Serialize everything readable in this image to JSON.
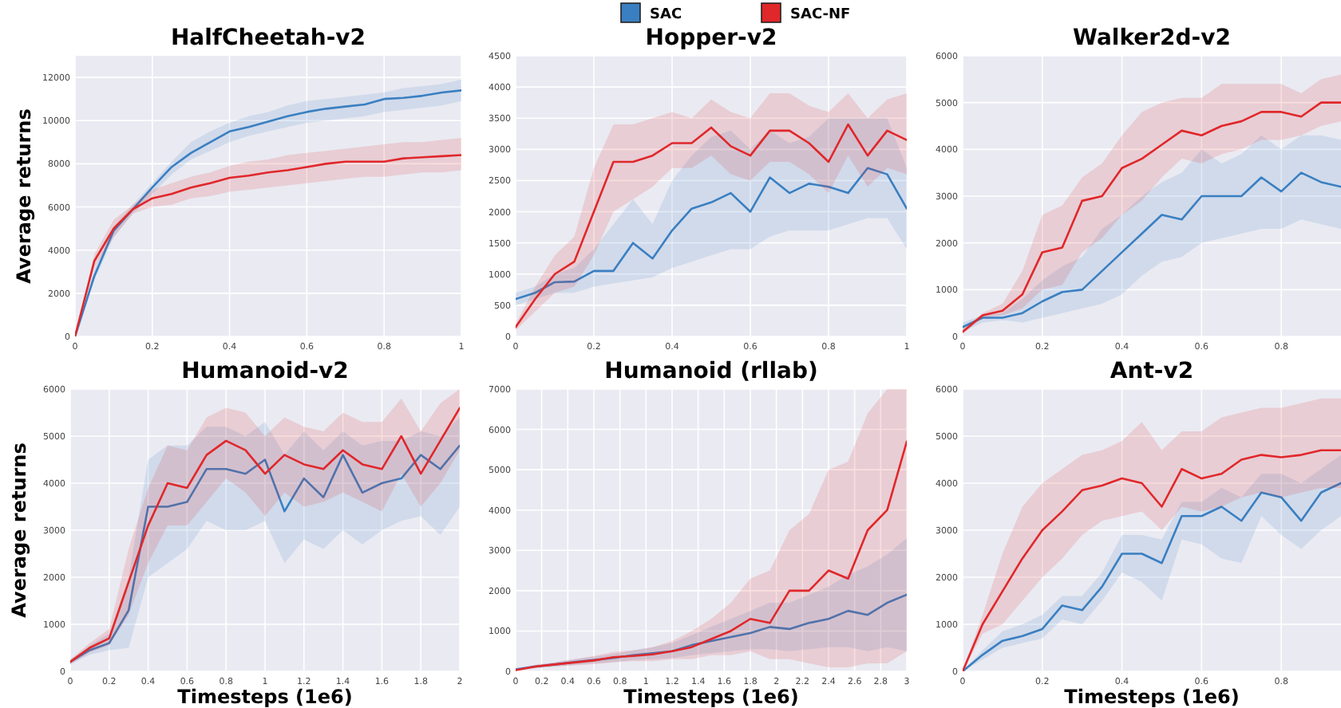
{
  "chart_data": [
    {
      "type": "line",
      "title": "HalfCheetah-v2",
      "ylabel": "Average returns",
      "x": [
        0,
        0.05,
        0.1,
        0.15,
        0.2,
        0.25,
        0.3,
        0.35,
        0.4,
        0.45,
        0.5,
        0.55,
        0.6,
        0.65,
        0.7,
        0.75,
        0.8,
        0.85,
        0.9,
        0.95,
        1
      ],
      "xlim": [
        0,
        1
      ],
      "xticks": [
        0,
        0.2,
        0.4,
        0.6,
        0.8,
        1
      ],
      "ylim": [
        0,
        13000
      ],
      "yticks": [
        0,
        2000,
        4000,
        6000,
        8000,
        10000,
        12000
      ],
      "grid": true,
      "series": [
        {
          "color": "#3a7fc1",
          "values": [
            0,
            2800,
            4900,
            5900,
            6900,
            7850,
            8500,
            9000,
            9500,
            9700,
            9950,
            10200,
            10400,
            10550,
            10650,
            10750,
            11000,
            11050,
            11150,
            11300,
            11400
          ],
          "lower": [
            0,
            2600,
            4600,
            5700,
            6600,
            7500,
            8200,
            8600,
            9000,
            9300,
            9500,
            9700,
            9900,
            10000,
            10100,
            10200,
            10400,
            10500,
            10600,
            10700,
            10900
          ],
          "upper": [
            0,
            3100,
            5100,
            6100,
            7100,
            8100,
            9000,
            9500,
            9900,
            10200,
            10400,
            10700,
            10900,
            11000,
            11100,
            11200,
            11300,
            11500,
            11600,
            11700,
            11900
          ]
        },
        {
          "color": "#e0272a",
          "values": [
            0,
            3500,
            5000,
            5900,
            6400,
            6600,
            6900,
            7100,
            7350,
            7450,
            7600,
            7700,
            7850,
            8000,
            8100,
            8100,
            8100,
            8250,
            8300,
            8350,
            8400
          ],
          "lower": [
            0,
            3200,
            4600,
            5700,
            6000,
            6100,
            6400,
            6500,
            6700,
            6800,
            6900,
            7000,
            7100,
            7200,
            7300,
            7400,
            7400,
            7500,
            7600,
            7600,
            7700
          ],
          "upper": [
            0,
            3800,
            5400,
            6100,
            6800,
            7100,
            7400,
            7600,
            7900,
            8100,
            8200,
            8400,
            8500,
            8600,
            8700,
            8800,
            8900,
            9000,
            9000,
            9100,
            9200
          ]
        }
      ]
    },
    {
      "type": "line",
      "title": "Hopper-v2",
      "legend": "top",
      "x": [
        0,
        0.05,
        0.1,
        0.15,
        0.2,
        0.25,
        0.3,
        0.35,
        0.4,
        0.45,
        0.5,
        0.55,
        0.6,
        0.65,
        0.7,
        0.75,
        0.8,
        0.85,
        0.9,
        0.95,
        1
      ],
      "xlim": [
        0,
        1
      ],
      "xticks": [
        0,
        0.2,
        0.4,
        0.6,
        0.8,
        1
      ],
      "ylim": [
        0,
        4500
      ],
      "yticks": [
        0,
        500,
        1000,
        1500,
        2000,
        2500,
        3000,
        3500,
        4000,
        4500
      ],
      "grid": true,
      "series": [
        {
          "name": "SAC",
          "color": "#3a7fc1",
          "values": [
            600,
            700,
            870,
            880,
            1050,
            1050,
            1500,
            1250,
            1700,
            2050,
            2150,
            2300,
            2000,
            2550,
            2300,
            2450,
            2400,
            2300,
            2700,
            2600,
            2050
          ],
          "lower": [
            500,
            600,
            700,
            700,
            800,
            850,
            900,
            950,
            1100,
            1200,
            1300,
            1400,
            1400,
            1600,
            1700,
            1700,
            1700,
            1800,
            1900,
            1900,
            1400
          ],
          "upper": [
            700,
            800,
            1000,
            1100,
            1400,
            1800,
            2200,
            1800,
            2500,
            2900,
            3200,
            3300,
            3000,
            3300,
            3100,
            3200,
            3500,
            3500,
            3500,
            3500,
            2700
          ]
        },
        {
          "name": "SAC-NF",
          "color": "#e0272a",
          "values": [
            150,
            600,
            1000,
            1200,
            2000,
            2800,
            2800,
            2900,
            3100,
            3100,
            3350,
            3050,
            2900,
            3300,
            3300,
            3100,
            2800,
            3400,
            2900,
            3300,
            3150
          ],
          "lower": [
            100,
            400,
            700,
            800,
            1300,
            2000,
            2200,
            2400,
            2700,
            2700,
            2900,
            2600,
            2500,
            2800,
            2800,
            2600,
            2300,
            2900,
            2400,
            2700,
            2600
          ],
          "upper": [
            200,
            800,
            1300,
            1600,
            2700,
            3400,
            3400,
            3500,
            3600,
            3500,
            3800,
            3600,
            3500,
            3900,
            3900,
            3700,
            3600,
            3900,
            3500,
            3800,
            3900
          ]
        }
      ]
    },
    {
      "type": "line",
      "title": "Walker2d-v2",
      "x": [
        0,
        0.05,
        0.1,
        0.15,
        0.2,
        0.25,
        0.3,
        0.35,
        0.4,
        0.45,
        0.5,
        0.55,
        0.6,
        0.65,
        0.7,
        0.75,
        0.8,
        0.85,
        0.9,
        0.95
      ],
      "xlim": [
        0,
        0.95
      ],
      "xticks": [
        0,
        0.2,
        0.4,
        0.6,
        0.8
      ],
      "ylim": [
        0,
        6000
      ],
      "yticks": [
        0,
        1000,
        2000,
        3000,
        4000,
        5000,
        6000
      ],
      "grid": true,
      "series": [
        {
          "color": "#3a7fc1",
          "values": [
            200,
            400,
            400,
            500,
            750,
            950,
            1000,
            1400,
            1800,
            2200,
            2600,
            2500,
            3000,
            3000,
            3000,
            3400,
            3100,
            3500,
            3300,
            3200
          ],
          "lower": [
            100,
            300,
            350,
            300,
            400,
            500,
            600,
            700,
            900,
            1300,
            1600,
            1700,
            2000,
            2100,
            2200,
            2300,
            2300,
            2500,
            2400,
            2300
          ],
          "upper": [
            300,
            450,
            500,
            800,
            1200,
            1500,
            1700,
            2300,
            2600,
            3000,
            3300,
            3500,
            4000,
            3700,
            3900,
            4300,
            4000,
            4300,
            4300,
            4200
          ]
        },
        {
          "color": "#e0272a",
          "values": [
            100,
            450,
            550,
            900,
            1800,
            1900,
            2900,
            3000,
            3600,
            3800,
            4100,
            4400,
            4300,
            4500,
            4600,
            4800,
            4800,
            4700,
            5000,
            5000
          ],
          "lower": [
            50,
            400,
            450,
            600,
            1000,
            1100,
            1800,
            2100,
            2600,
            2900,
            3400,
            3800,
            3700,
            3900,
            4000,
            4200,
            4200,
            4300,
            4500,
            4600
          ],
          "upper": [
            150,
            500,
            700,
            1400,
            2600,
            2800,
            3400,
            3700,
            4300,
            4800,
            5000,
            5100,
            5100,
            5400,
            5400,
            5400,
            5400,
            5200,
            5500,
            5600
          ]
        }
      ]
    },
    {
      "type": "line",
      "title": "Humanoid-v2",
      "ylabel": "Average returns",
      "xlabel": "Timesteps (1e6)",
      "x": [
        0,
        0.1,
        0.2,
        0.3,
        0.4,
        0.5,
        0.6,
        0.7,
        0.8,
        0.9,
        1,
        1.1,
        1.2,
        1.3,
        1.4,
        1.5,
        1.6,
        1.7,
        1.8,
        1.9,
        2
      ],
      "xlim": [
        0,
        2
      ],
      "xticks": [
        0,
        0.2,
        0.4,
        0.6,
        0.8,
        1,
        1.2,
        1.4,
        1.6,
        1.8,
        2
      ],
      "ylim": [
        0,
        6000
      ],
      "yticks": [
        0,
        1000,
        2000,
        3000,
        4000,
        5000,
        6000
      ],
      "grid": true,
      "series": [
        {
          "color": "#3a7fc1",
          "values": [
            200,
            450,
            600,
            1300,
            3500,
            3500,
            3600,
            4300,
            4300,
            4200,
            4500,
            3400,
            4100,
            3700,
            4600,
            3800,
            4000,
            4100,
            4600,
            4300,
            4800
          ],
          "lower": [
            150,
            350,
            450,
            500,
            2000,
            2300,
            2600,
            3200,
            3000,
            3000,
            3200,
            2300,
            2800,
            2600,
            3000,
            2700,
            3000,
            3200,
            3300,
            2900,
            3500
          ],
          "upper": [
            250,
            550,
            800,
            2000,
            4500,
            4800,
            4800,
            5200,
            5200,
            5000,
            5300,
            4600,
            5100,
            4700,
            5100,
            4800,
            4900,
            4900,
            5100,
            5000,
            5400
          ]
        },
        {
          "color": "#e0272a",
          "values": [
            200,
            500,
            700,
            1900,
            3100,
            4000,
            3900,
            4600,
            4900,
            4700,
            4200,
            4600,
            4400,
            4300,
            4700,
            4400,
            4300,
            5000,
            4200,
            4900,
            5600
          ],
          "lower": [
            150,
            400,
            550,
            1200,
            2300,
            3100,
            3100,
            3600,
            4100,
            3800,
            3300,
            3800,
            3500,
            3600,
            3800,
            3600,
            3400,
            4200,
            3500,
            4000,
            4700
          ],
          "upper": [
            250,
            600,
            900,
            2600,
            3900,
            4800,
            4700,
            5400,
            5600,
            5500,
            5000,
            5400,
            5200,
            5100,
            5500,
            5300,
            5300,
            5800,
            5100,
            5700,
            6000
          ]
        }
      ]
    },
    {
      "type": "line",
      "title": "Humanoid (rllab)",
      "xlabel": "Timesteps (1e6)",
      "x": [
        0,
        0.15,
        0.3,
        0.45,
        0.6,
        0.75,
        0.9,
        1.05,
        1.2,
        1.35,
        1.5,
        1.65,
        1.8,
        1.95,
        2.1,
        2.25,
        2.4,
        2.55,
        2.7,
        2.85,
        3
      ],
      "xlim": [
        0,
        3
      ],
      "xticks": [
        0,
        0.2,
        0.4,
        0.6,
        0.8,
        1,
        1.2,
        1.4,
        1.6,
        1.8,
        2,
        2.2,
        2.4,
        2.6,
        2.8,
        3
      ],
      "ylim": [
        0,
        7000
      ],
      "yticks": [
        0,
        1000,
        2000,
        3000,
        4000,
        5000,
        6000,
        7000
      ],
      "grid": true,
      "series": [
        {
          "color": "#3a7fc1",
          "values": [
            50,
            120,
            170,
            230,
            280,
            330,
            400,
            450,
            500,
            650,
            750,
            850,
            950,
            1100,
            1050,
            1200,
            1300,
            1500,
            1400,
            1700,
            1900
          ],
          "lower": [
            20,
            80,
            120,
            160,
            200,
            230,
            280,
            300,
            330,
            400,
            450,
            500,
            550,
            550,
            500,
            550,
            600,
            600,
            500,
            600,
            500
          ],
          "upper": [
            80,
            160,
            220,
            300,
            360,
            430,
            520,
            600,
            700,
            900,
            1100,
            1300,
            1500,
            1700,
            1700,
            1900,
            2100,
            2400,
            2600,
            2900,
            3300
          ]
        },
        {
          "color": "#e0272a",
          "values": [
            30,
            120,
            170,
            220,
            270,
            350,
            380,
            420,
            500,
            600,
            800,
            1000,
            1300,
            1200,
            2000,
            2000,
            2500,
            2300,
            3500,
            4000,
            5700
          ],
          "lower": [
            10,
            80,
            120,
            150,
            180,
            220,
            250,
            250,
            300,
            300,
            400,
            400,
            500,
            300,
            300,
            200,
            100,
            100,
            200,
            200,
            500
          ],
          "upper": [
            50,
            160,
            220,
            300,
            380,
            480,
            520,
            600,
            750,
            1000,
            1300,
            1700,
            2300,
            2500,
            3500,
            3900,
            5000,
            5200,
            6400,
            7000,
            7000
          ]
        }
      ]
    },
    {
      "type": "line",
      "title": "Ant-v2",
      "xlabel": "Timesteps (1e6)",
      "x": [
        0,
        0.05,
        0.1,
        0.15,
        0.2,
        0.25,
        0.3,
        0.35,
        0.4,
        0.45,
        0.5,
        0.55,
        0.6,
        0.65,
        0.7,
        0.75,
        0.8,
        0.85,
        0.9,
        0.95
      ],
      "xlim": [
        0,
        0.95
      ],
      "xticks": [
        0,
        0.2,
        0.4,
        0.6,
        0.8
      ],
      "ylim": [
        0,
        6000
      ],
      "yticks": [
        0,
        1000,
        2000,
        3000,
        4000,
        5000,
        6000
      ],
      "grid": true,
      "series": [
        {
          "color": "#3a7fc1",
          "values": [
            0,
            350,
            650,
            750,
            900,
            1400,
            1300,
            1800,
            2500,
            2500,
            2300,
            3300,
            3300,
            3500,
            3200,
            3800,
            3700,
            3200,
            3800,
            4000
          ],
          "lower": [
            0,
            250,
            500,
            600,
            700,
            1100,
            1000,
            1500,
            2100,
            1900,
            1500,
            2800,
            2700,
            2400,
            2300,
            3300,
            2900,
            2600,
            3000,
            3300
          ],
          "upper": [
            0,
            450,
            850,
            1000,
            1200,
            1600,
            1600,
            2100,
            2900,
            2900,
            2800,
            3600,
            3600,
            3900,
            3700,
            4200,
            4200,
            4000,
            4300,
            4600
          ]
        },
        {
          "color": "#e0272a",
          "values": [
            0,
            1000,
            1700,
            2400,
            3000,
            3400,
            3850,
            3950,
            4100,
            4000,
            3500,
            4300,
            4100,
            4200,
            4500,
            4600,
            4550,
            4600,
            4700,
            4700
          ],
          "lower": [
            0,
            800,
            1000,
            1500,
            2000,
            2400,
            2900,
            3200,
            3300,
            3400,
            3000,
            3500,
            3400,
            3500,
            3700,
            3800,
            3700,
            3800,
            3900,
            3900
          ],
          "upper": [
            0,
            1200,
            2500,
            3500,
            4000,
            4300,
            4600,
            4700,
            4900,
            5300,
            4700,
            5100,
            5100,
            5400,
            5500,
            5600,
            5600,
            5700,
            5800,
            5800
          ]
        }
      ]
    }
  ]
}
